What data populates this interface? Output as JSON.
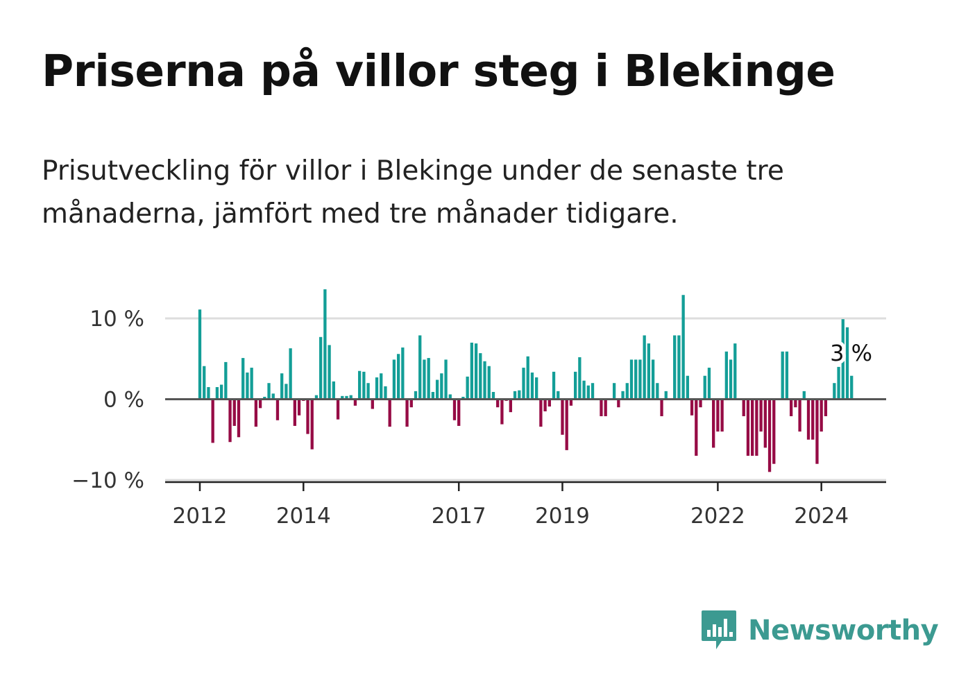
{
  "header": {
    "title": "Priserna på villor steg i Blekinge",
    "subtitle": "Prisutveckling för villor i Blekinge under de senaste tre månaderna, jämfört med tre månader tidigare."
  },
  "branding": {
    "name": "Newsworthy"
  },
  "colors": {
    "positive": "#139e97",
    "negative": "#960b45",
    "baseline": "#555555",
    "grid": "#dddddd",
    "logo": "#3c9a91"
  },
  "chart_data": {
    "type": "bar",
    "x_start": {
      "year": 2012,
      "month": 1
    },
    "ylim": [
      -10,
      10
    ],
    "y_ticks": [
      {
        "value": 10,
        "label": "10 %"
      },
      {
        "value": 0,
        "label": "0 %"
      },
      {
        "value": -10,
        "label": "−10 %"
      }
    ],
    "x_ticks": [
      {
        "year": 2012,
        "label": "2012"
      },
      {
        "year": 2014,
        "label": "2014"
      },
      {
        "year": 2017,
        "label": "2017"
      },
      {
        "year": 2019,
        "label": "2019"
      },
      {
        "year": 2022,
        "label": "2022"
      },
      {
        "year": 2024,
        "label": "2024"
      }
    ],
    "end_label": "3 %",
    "grid": true,
    "values": [
      11.1,
      4.1,
      1.5,
      -5.4,
      1.5,
      1.8,
      4.6,
      -5.3,
      -3.3,
      -4.7,
      5.1,
      3.3,
      3.9,
      -3.4,
      -1.1,
      0.3,
      2.0,
      0.7,
      -2.6,
      3.2,
      1.9,
      6.3,
      -3.3,
      -2.0,
      -0.2,
      -4.3,
      -6.2,
      0.5,
      7.7,
      13.6,
      6.7,
      2.2,
      -2.5,
      0.4,
      0.4,
      0.5,
      -0.8,
      3.5,
      3.4,
      2.0,
      -1.2,
      2.7,
      3.2,
      1.6,
      -3.4,
      4.9,
      5.6,
      6.4,
      -3.4,
      -1.0,
      1.0,
      7.9,
      4.9,
      5.1,
      0.9,
      2.4,
      3.2,
      4.9,
      0.6,
      -2.6,
      -3.3,
      0.3,
      2.8,
      7.0,
      6.9,
      5.7,
      4.7,
      4.1,
      0.9,
      -1.0,
      -3.1,
      -0.2,
      -1.6,
      1.0,
      1.1,
      3.9,
      5.3,
      3.3,
      2.7,
      -3.4,
      -1.5,
      -0.9,
      3.4,
      1.0,
      -4.4,
      -6.3,
      -0.8,
      3.4,
      5.2,
      2.3,
      1.7,
      2.0,
      -0.1,
      -2.1,
      -2.1,
      -0.1,
      2.0,
      -1.0,
      1.0,
      2.0,
      4.9,
      4.9,
      4.9,
      7.9,
      6.9,
      4.9,
      2.0,
      -2.1,
      1.0,
      0.0,
      7.9,
      7.9,
      12.9,
      2.9,
      -2.0,
      -7.0,
      -1.0,
      2.9,
      3.9,
      -6.0,
      -4.0,
      -4.0,
      5.9,
      4.9,
      6.9,
      0.0,
      -2.1,
      -7.0,
      -7.0,
      -7.0,
      -4.0,
      -6.0,
      -9.0,
      -8.0,
      0.0,
      5.9,
      5.9,
      -2.1,
      -1.0,
      -4.0,
      1.0,
      -5.0,
      -5.0,
      -8.0,
      -4.0,
      -2.1,
      0.0,
      2.0,
      4.0,
      9.9,
      8.9,
      2.9
    ]
  }
}
